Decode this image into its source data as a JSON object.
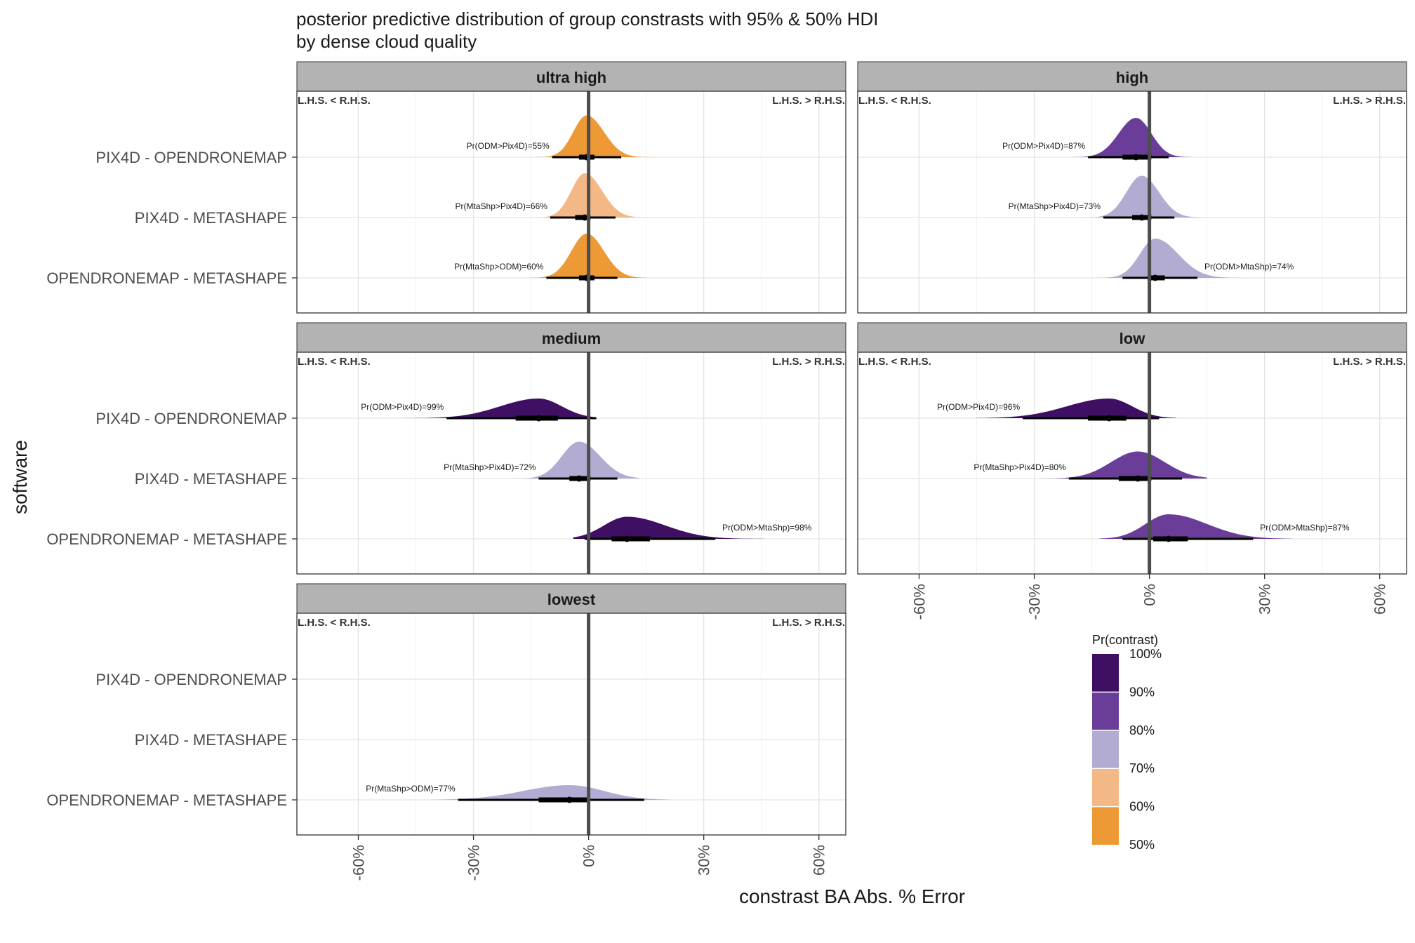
{
  "chart_data": {
    "type": "density",
    "title": "posterior predictive distribution of group constrasts with 95% & 50% HDI",
    "subtitle": "by dense cloud quality",
    "xlabel": "constrast BA Abs. % Error",
    "ylabel": "software",
    "x_tick_values": [
      -60,
      -30,
      0,
      30,
      60
    ],
    "x_tick_labels": [
      "-60%",
      "-30%",
      "0%",
      "30%",
      "60%"
    ],
    "xlim": [
      -76,
      67
    ],
    "rows": [
      "PIX4D - OPENDRONEMAP",
      "PIX4D - METASHAPE",
      "OPENDRONEMAP - METASHAPE"
    ],
    "left_label": "L.H.S. < R.H.S.",
    "right_label": "L.H.S. > R.H.S.",
    "reference_line": 0,
    "legend": {
      "title": "Pr(contrast)",
      "placement": "right",
      "labels": [
        "100%",
        "90%",
        "80%",
        "70%",
        "60%",
        "50%"
      ],
      "colors": [
        "#3f0f63",
        "#6a3d99",
        "#b2abd2",
        "#f3b886",
        "#ed9935"
      ]
    },
    "facets": [
      {
        "label": "ultra high",
        "contrasts": [
          {
            "row": "PIX4D - OPENDRONEMAP",
            "label": "Pr(ODM>Pix4D)=55%",
            "prob": 55,
            "mode": -0.5,
            "sd_left": 3.5,
            "sd_right": 4.5,
            "peak": 0.85,
            "hdi95": [
              -9.5,
              8.5
            ],
            "hdi50": [
              -2.5,
              1.5
            ],
            "tail": [
              -17,
              18
            ],
            "color": "#ed9935"
          },
          {
            "row": "PIX4D - METASHAPE",
            "label": "Pr(MtaShp>Pix4D)=66%",
            "prob": 66,
            "mode": -1,
            "sd_left": 3.5,
            "sd_right": 4.5,
            "peak": 0.9,
            "hdi95": [
              -10,
              7
            ],
            "hdi50": [
              -3.5,
              0.5
            ],
            "tail": [
              -16,
              15
            ],
            "color": "#f3b886"
          },
          {
            "row": "OPENDRONEMAP - METASHAPE",
            "label": "Pr(MtaShp>ODM)=60%",
            "prob": 60,
            "mode": -0.5,
            "sd_left": 4,
            "sd_right": 4.5,
            "peak": 0.9,
            "hdi95": [
              -11,
              7.5
            ],
            "hdi50": [
              -2.5,
              1.5
            ],
            "tail": [
              -17,
              15
            ],
            "color": "#ed9935"
          }
        ]
      },
      {
        "label": "high",
        "contrasts": [
          {
            "row": "PIX4D - OPENDRONEMAP",
            "label": "Pr(ODM>Pix4D)=87%",
            "prob": 87,
            "mode": -3.5,
            "sd_left": 4.5,
            "sd_right": 4,
            "peak": 0.8,
            "hdi95": [
              -16,
              5
            ],
            "hdi50": [
              -7,
              0.5
            ],
            "tail": [
              -26,
              11
            ],
            "color": "#6a3d99"
          },
          {
            "row": "PIX4D - METASHAPE",
            "label": "Pr(MtaShp>Pix4D)=73%",
            "prob": 73,
            "mode": -2,
            "sd_left": 4,
            "sd_right": 4.5,
            "peak": 0.85,
            "hdi95": [
              -12,
              6.5
            ],
            "hdi50": [
              -4.5,
              0.5
            ],
            "tail": [
              -20,
              15
            ],
            "color": "#b2abd2"
          },
          {
            "row": "OPENDRONEMAP - METASHAPE",
            "label": "Pr(ODM>MtaShp)=74%",
            "prob": 74,
            "mode": 1.5,
            "sd_left": 4,
            "sd_right": 6,
            "peak": 0.8,
            "hdi95": [
              -7,
              12.5
            ],
            "hdi50": [
              -0.5,
              4
            ],
            "tail": [
              -14,
              24
            ],
            "color": "#b2abd2"
          }
        ]
      },
      {
        "label": "medium",
        "contrasts": [
          {
            "row": "PIX4D - OPENDRONEMAP",
            "label": "Pr(ODM>Pix4D)=99%",
            "prob": 99,
            "mode": -13,
            "sd_left": 10,
            "sd_right": 6,
            "peak": 0.4,
            "hdi95": [
              -37,
              2
            ],
            "hdi50": [
              -19,
              -8
            ],
            "tail": [
              -48,
              2
            ],
            "color": "#3f0f63"
          },
          {
            "row": "PIX4D - METASHAPE",
            "label": "Pr(MtaShp>Pix4D)=72%",
            "prob": 72,
            "mode": -2.5,
            "sd_left": 4.5,
            "sd_right": 5.5,
            "peak": 0.75,
            "hdi95": [
              -13,
              7.5
            ],
            "hdi50": [
              -5,
              0.5
            ],
            "tail": [
              -20,
              13
            ],
            "color": "#b2abd2"
          },
          {
            "row": "OPENDRONEMAP - METASHAPE",
            "label": "Pr(ODM>MtaShp)=98%",
            "prob": 98,
            "mode": 10,
            "sd_left": 6,
            "sd_right": 10,
            "peak": 0.45,
            "hdi95": [
              -1,
              33
            ],
            "hdi50": [
              6,
              16
            ],
            "tail": [
              -4,
              47
            ],
            "color": "#3f0f63"
          }
        ]
      },
      {
        "label": "low",
        "contrasts": [
          {
            "row": "PIX4D - OPENDRONEMAP",
            "label": "Pr(ODM>Pix4D)=96%",
            "prob": 96,
            "mode": -10.5,
            "sd_left": 11,
            "sd_right": 6,
            "peak": 0.4,
            "hdi95": [
              -33,
              2.5
            ],
            "hdi50": [
              -16,
              -6
            ],
            "tail": [
              -45,
              7
            ],
            "color": "#3f0f63"
          },
          {
            "row": "PIX4D - METASHAPE",
            "label": "Pr(MtaShp>Pix4D)=80%",
            "prob": 80,
            "mode": -3,
            "sd_left": 7,
            "sd_right": 7,
            "peak": 0.55,
            "hdi95": [
              -21,
              8.5
            ],
            "hdi50": [
              -8,
              0.5
            ],
            "tail": [
              -29,
              15
            ],
            "color": "#6a3d99"
          },
          {
            "row": "OPENDRONEMAP - METASHAPE",
            "label": "Pr(ODM>MtaShp)=87%",
            "prob": 87,
            "mode": 5,
            "sd_left": 6,
            "sd_right": 10,
            "peak": 0.5,
            "hdi95": [
              -7,
              27
            ],
            "hdi50": [
              1,
              10
            ],
            "tail": [
              -13,
              37
            ],
            "color": "#6a3d99"
          }
        ]
      },
      {
        "label": "lowest",
        "contrasts": [
          {
            "row": "OPENDRONEMAP - METASHAPE",
            "label": "Pr(MtaShp>ODM)=77%",
            "prob": 77,
            "mode": -5,
            "sd_left": 12,
            "sd_right": 9,
            "peak": 0.3,
            "hdi95": [
              -34,
              14.5
            ],
            "hdi50": [
              -13,
              0
            ],
            "tail": [
              -41,
              21
            ],
            "color": "#b2abd2"
          }
        ]
      }
    ]
  }
}
